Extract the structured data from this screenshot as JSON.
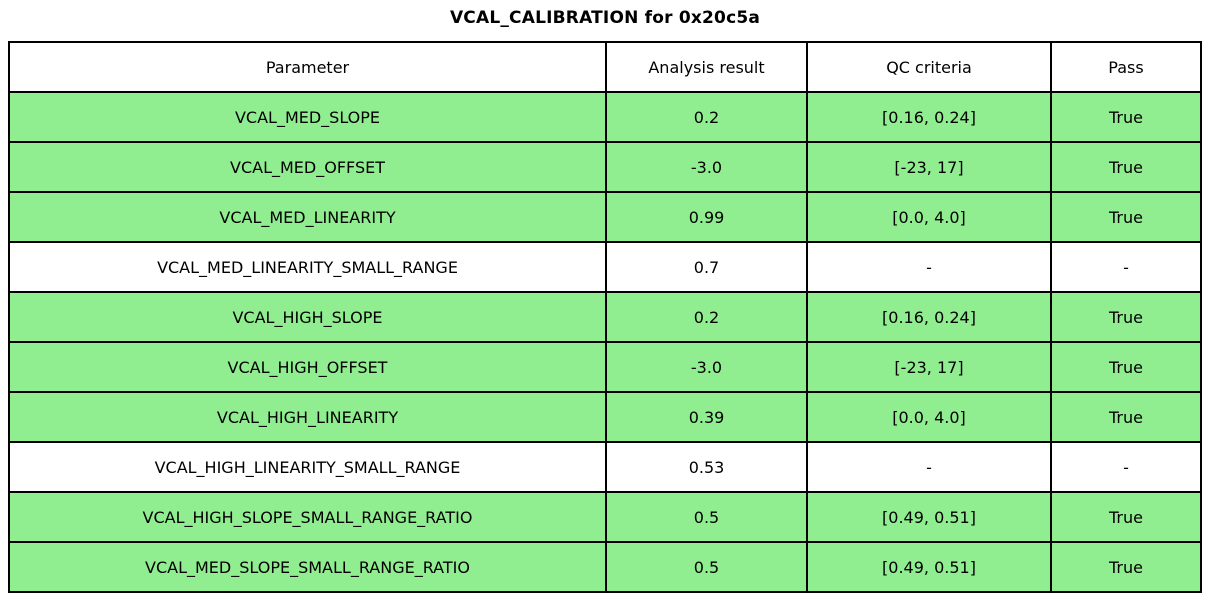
{
  "title": "VCAL_CALIBRATION for 0x20c5a",
  "colors": {
    "pass_row_background": "#90ee90",
    "plain_row_background": "#ffffff",
    "border": "#000000",
    "text": "#000000"
  },
  "chart_data": {
    "type": "table",
    "title": "VCAL_CALIBRATION for 0x20c5a",
    "columns": [
      "Parameter",
      "Analysis result",
      "QC criteria",
      "Pass"
    ],
    "rows": [
      [
        "VCAL_MED_SLOPE",
        "0.2",
        "[0.16, 0.24]",
        "True"
      ],
      [
        "VCAL_MED_OFFSET",
        "-3.0",
        "[-23, 17]",
        "True"
      ],
      [
        "VCAL_MED_LINEARITY",
        "0.99",
        "[0.0, 4.0]",
        "True"
      ],
      [
        "VCAL_MED_LINEARITY_SMALL_RANGE",
        "0.7",
        "-",
        "-"
      ],
      [
        "VCAL_HIGH_SLOPE",
        "0.2",
        "[0.16, 0.24]",
        "True"
      ],
      [
        "VCAL_HIGH_OFFSET",
        "-3.0",
        "[-23, 17]",
        "True"
      ],
      [
        "VCAL_HIGH_LINEARITY",
        "0.39",
        "[0.0, 4.0]",
        "True"
      ],
      [
        "VCAL_HIGH_LINEARITY_SMALL_RANGE",
        "0.53",
        "-",
        "-"
      ],
      [
        "VCAL_HIGH_SLOPE_SMALL_RANGE_RATIO",
        "0.5",
        "[0.49, 0.51]",
        "True"
      ],
      [
        "VCAL_MED_SLOPE_SMALL_RANGE_RATIO",
        "0.5",
        "[0.49, 0.51]",
        "True"
      ]
    ],
    "row_highlight": [
      true,
      true,
      true,
      false,
      true,
      true,
      true,
      false,
      true,
      true
    ],
    "legend_position": "none",
    "grid": true
  }
}
